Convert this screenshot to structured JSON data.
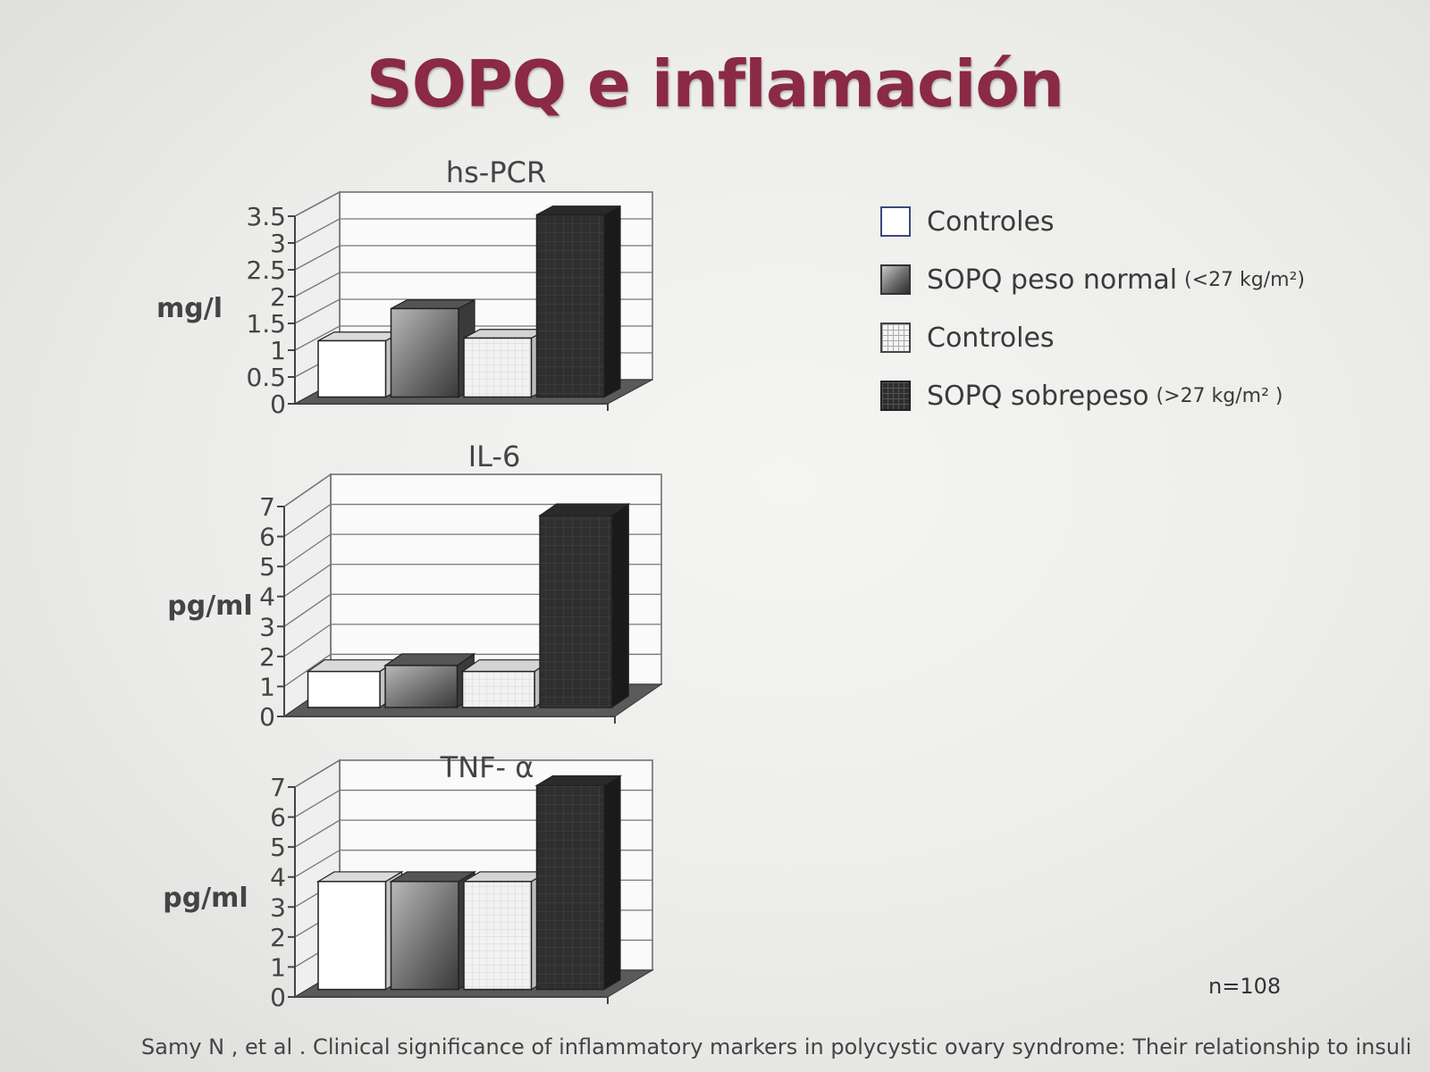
{
  "slide": {
    "title": "SOPQ e inflamación",
    "sample_size": "n=108",
    "citation": "Samy N , et al . Clinical significance of inflammatory markers in polycystic ovary syndrome: Their relationship to insulin"
  },
  "legend": [
    {
      "label": "Controles",
      "note": "",
      "style": "white"
    },
    {
      "label": "SOPQ peso normal",
      "note": "(<27 kg/m²)",
      "style": "gradient-gray"
    },
    {
      "label": "Controles",
      "note": "",
      "style": "light-grid"
    },
    {
      "label": "SOPQ  sobrepeso",
      "note": "(>27 kg/m² )",
      "style": "dark-grid"
    }
  ],
  "colors": {
    "title": "#8a2a44",
    "bar_front": [
      "#ffffff",
      "#6a6a6a",
      "#f2f2f2",
      "#2f2f2f"
    ],
    "bar_side": [
      "#c4c4c4",
      "#3a3a3a",
      "#bdbdbd",
      "#1a1a1a"
    ],
    "bar_top": [
      "#dadada",
      "#555555",
      "#d4d4d4",
      "#2a2a2a"
    ]
  },
  "chart_data": [
    {
      "type": "bar",
      "title": "hs-PCR",
      "ylabel": "mg/l",
      "series": [
        {
          "values": [
            1.05
          ]
        },
        {
          "values": [
            1.65
          ]
        },
        {
          "values": [
            1.1
          ]
        },
        {
          "values": [
            3.4
          ]
        }
      ],
      "ylim": [
        0,
        3.5
      ],
      "yticks": [
        "0",
        "0.5",
        "1",
        "1.5",
        "2",
        "2.5",
        "3",
        "3.5"
      ],
      "grid": true
    },
    {
      "type": "bar",
      "title": "IL-6",
      "ylabel": "pg/ml",
      "series": [
        {
          "values": [
            1.2
          ]
        },
        {
          "values": [
            1.4
          ]
        },
        {
          "values": [
            1.2
          ]
        },
        {
          "values": [
            6.4
          ]
        }
      ],
      "ylim": [
        0,
        7
      ],
      "yticks": [
        "0",
        "1",
        "2",
        "3",
        "4",
        "5",
        "6",
        "7"
      ],
      "grid": true
    },
    {
      "type": "bar",
      "title": "TNF- α",
      "ylabel": "pg/ml",
      "series": [
        {
          "values": [
            3.6
          ]
        },
        {
          "values": [
            3.6
          ]
        },
        {
          "values": [
            3.6
          ]
        },
        {
          "values": [
            6.8
          ]
        }
      ],
      "ylim": [
        0,
        7
      ],
      "yticks": [
        "0",
        "1",
        "2",
        "3",
        "4",
        "5",
        "6",
        "7"
      ],
      "grid": true
    }
  ]
}
